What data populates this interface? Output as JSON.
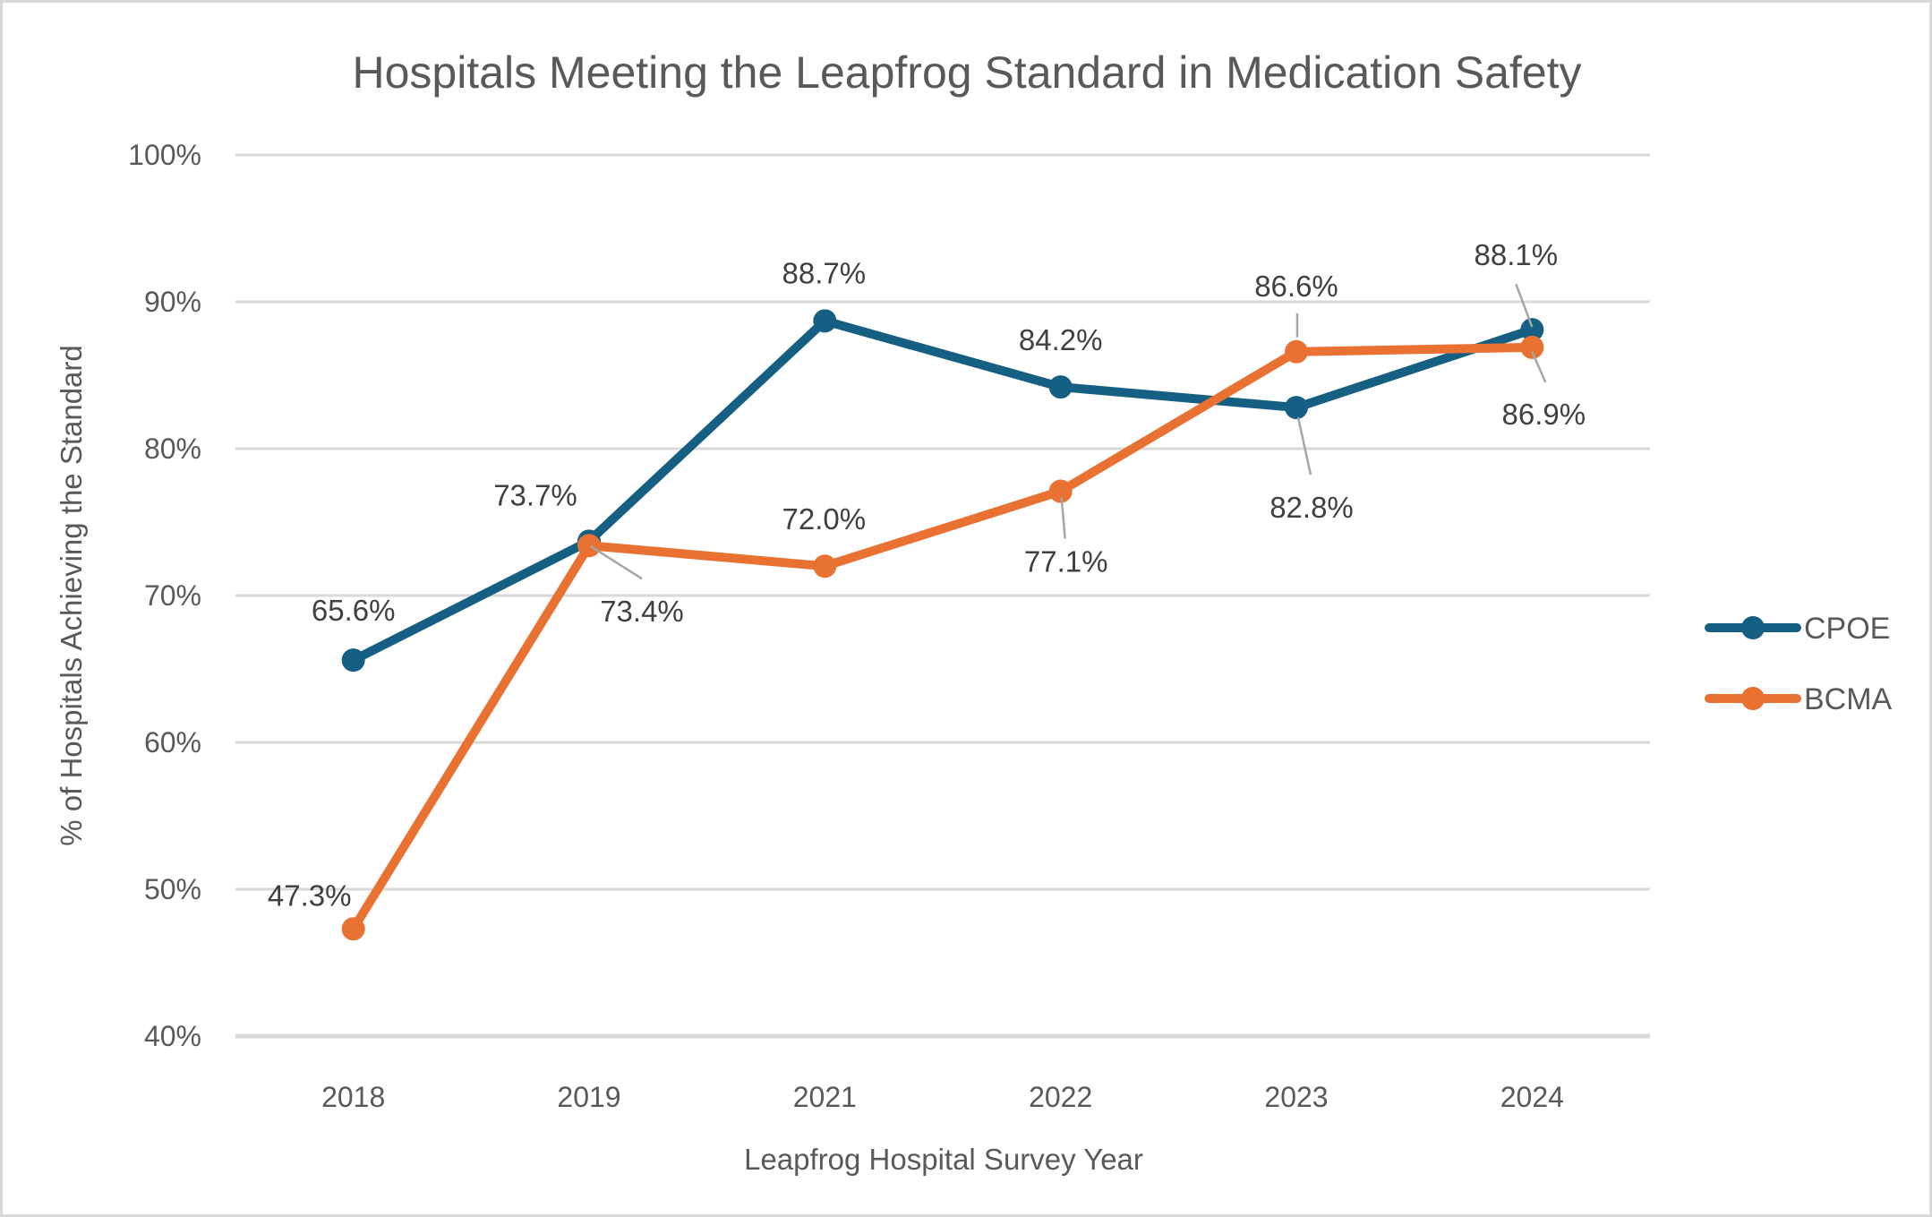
{
  "chart_data": {
    "type": "line",
    "title": "Hospitals Meeting the Leapfrog Standard in Medication Safety",
    "xlabel": "Leapfrog Hospital Survey Year",
    "ylabel": "% of Hospitals Achieving the Standard",
    "categories": [
      "2018",
      "2019",
      "2021",
      "2022",
      "2023",
      "2024"
    ],
    "ylim": [
      40,
      100
    ],
    "y_ticks": [
      {
        "label": "100%",
        "value": 100
      },
      {
        "label": "90%",
        "value": 90
      },
      {
        "label": "80%",
        "value": 80
      },
      {
        "label": "70%",
        "value": 70
      },
      {
        "label": "60%",
        "value": 60
      },
      {
        "label": "50%",
        "value": 50
      },
      {
        "label": "40%",
        "value": 40
      }
    ],
    "grid": "horizontal",
    "legend_position": "right",
    "series": [
      {
        "name": "CPOE",
        "color": "#156082",
        "values": [
          65.6,
          73.7,
          88.7,
          84.2,
          82.8,
          88.1
        ],
        "labels": [
          "65.6%",
          "73.7%",
          "88.7%",
          "84.2%",
          "82.8%",
          "88.1%"
        ],
        "label_offsets": [
          [
            0,
            -55
          ],
          [
            -60,
            -51
          ],
          [
            -1,
            -53
          ],
          [
            0,
            -52
          ],
          [
            17,
            112
          ],
          [
            -18,
            -83
          ]
        ],
        "leader_lines": [
          null,
          null,
          null,
          null,
          [
            2,
            11,
            16,
            75
          ],
          [
            -18,
            -51,
            0,
            -3
          ]
        ]
      },
      {
        "name": "BCMA",
        "color": "#E97132",
        "values": [
          47.3,
          73.4,
          72.0,
          77.1,
          86.6,
          86.9
        ],
        "labels": [
          "47.3%",
          "73.4%",
          "72.0%",
          "77.1%",
          "86.6%",
          "86.9%"
        ],
        "label_offsets": [
          [
            -49,
            -37
          ],
          [
            59,
            74
          ],
          [
            -1,
            -52
          ],
          [
            6,
            79
          ],
          [
            0,
            -73
          ],
          [
            13,
            75
          ]
        ],
        "leader_lines": [
          null,
          [
            2,
            1,
            59,
            37
          ],
          null,
          [
            1,
            7,
            5,
            53
          ],
          [
            1,
            -43,
            1,
            -16
          ],
          [
            0,
            5,
            15,
            39
          ]
        ]
      }
    ],
    "colors": {
      "title_text": "#595959",
      "axis_text": "#595959",
      "data_label_text": "#404040",
      "gridline": "#D9D9D9",
      "leader_line": "#A6A6A6",
      "border": "#D9D9D9",
      "background": "#FFFFFF"
    }
  }
}
